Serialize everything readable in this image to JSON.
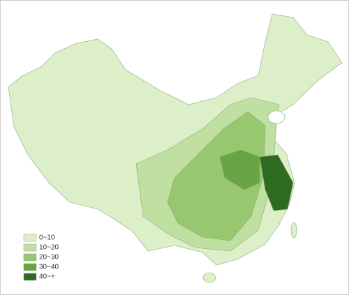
{
  "legend": {
    "items": [
      {
        "label": "0~10",
        "color": "#dcefc9"
      },
      {
        "label": "10~20",
        "color": "#bfe0a0"
      },
      {
        "label": "20~30",
        "color": "#97c76e"
      },
      {
        "label": "30~40",
        "color": "#68a443"
      },
      {
        "label": "40~+",
        "color": "#2e6a20"
      }
    ]
  }
}
